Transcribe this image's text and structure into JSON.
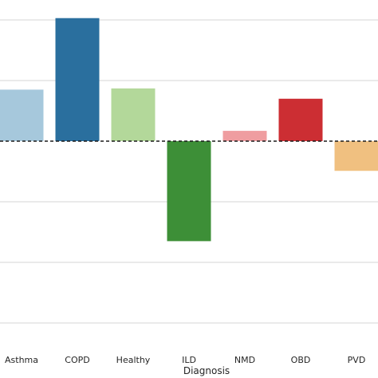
{
  "chart_data": {
    "type": "bar",
    "title": "",
    "xlabel": "Diagnosis",
    "ylabel": "",
    "categories": [
      "Asthma",
      "COPD",
      "Healthy",
      "ILD",
      "NMD",
      "OBD",
      "PVD"
    ],
    "values": [
      0.85,
      2.03,
      0.87,
      -1.65,
      0.17,
      0.7,
      -0.49
    ],
    "colors": [
      "#a6c8dc",
      "#2a6f9e",
      "#b3d89a",
      "#3d8f37",
      "#ef9da0",
      "#cc2e33",
      "#f0c080"
    ],
    "reference_line": {
      "y": 0,
      "style": "dashed"
    },
    "ylim": [
      -3.0,
      2.3
    ],
    "grid": true,
    "gridlines_at": [
      2,
      1,
      -1,
      -2,
      -3
    ]
  }
}
